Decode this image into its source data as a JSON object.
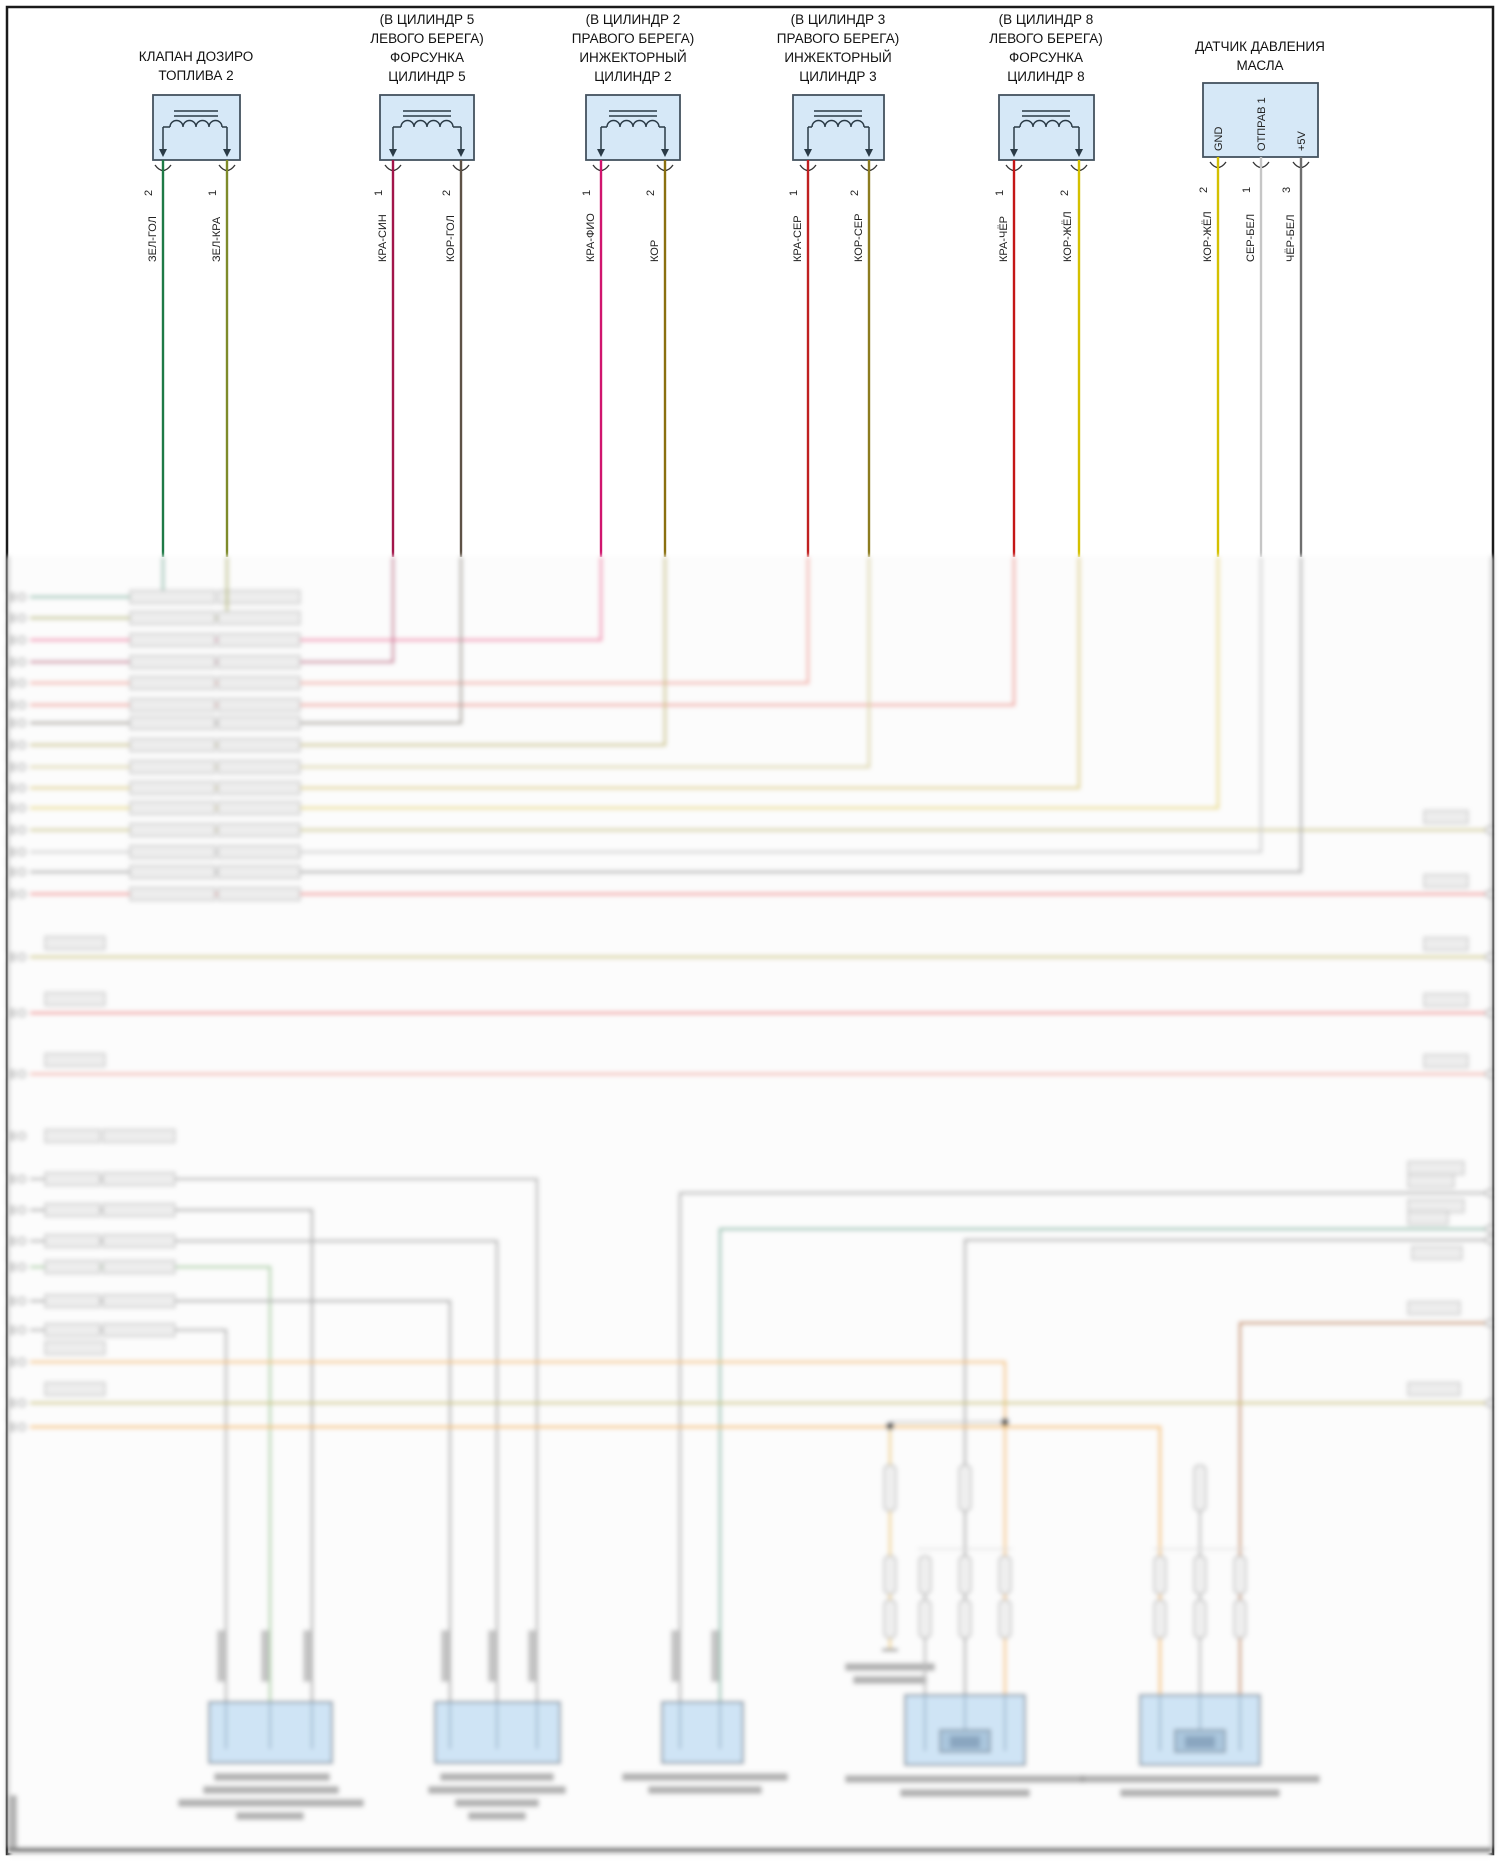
{
  "diagram": {
    "page_kind": "automotive wiring diagram, lower half blurred/illegible",
    "components": [
      {
        "id": "fuel-metering-valve-2",
        "title_lines": [
          "КЛАПАН ДОЗИРО",
          "ТОПЛИВА 2"
        ],
        "symbol": "solenoid-coil",
        "pins": [
          {
            "number": "2",
            "wire_label": "ЗЕЛ-ГОЛ",
            "wire_color": "#1e7a46"
          },
          {
            "number": "1",
            "wire_label": "ЗЕЛ-КРА",
            "wire_color": "#7e8b2b"
          }
        ]
      },
      {
        "id": "injector-cylinder-5",
        "title_lines": [
          "(В ЦИЛИНДР 5",
          "ЛЕВОГО БЕРЕГА)",
          "ФОРСУНКА",
          "ЦИЛИНДР 5"
        ],
        "symbol": "solenoid-coil",
        "pins": [
          {
            "number": "1",
            "wire_label": "КРА-СИН",
            "wire_color": "#a2154a"
          },
          {
            "number": "2",
            "wire_label": "КОР-ГОЛ",
            "wire_color": "#5e5246"
          }
        ]
      },
      {
        "id": "injector-cylinder-2",
        "title_lines": [
          "(В ЦИЛИНДР 2",
          "ПРАВОГО БЕРЕГА)",
          "ИНЖЕКТОРНЫЙ",
          "ЦИЛИНДР 2"
        ],
        "symbol": "solenoid-coil",
        "pins": [
          {
            "number": "1",
            "wire_label": "КРА-ФИО",
            "wire_color": "#d0156e"
          },
          {
            "number": "2",
            "wire_label": "КОР",
            "wire_color": "#8a7010"
          }
        ]
      },
      {
        "id": "injector-cylinder-3",
        "title_lines": [
          "(В ЦИЛИНДР 3",
          "ПРАВОГО БЕРЕГА)",
          "ИНЖЕКТОРНЫЙ",
          "ЦИЛИНДР 3"
        ],
        "symbol": "solenoid-coil",
        "pins": [
          {
            "number": "1",
            "wire_label": "КРА-СЕР",
            "wire_color": "#c02020"
          },
          {
            "number": "2",
            "wire_label": "КОР-СЕР",
            "wire_color": "#8c7c20"
          }
        ]
      },
      {
        "id": "injector-cylinder-8",
        "title_lines": [
          "(В ЦИЛИНДР 8",
          "ЛЕВОГО БЕРЕГА)",
          "ФОРСУНКА",
          "ЦИЛИНДР 8"
        ],
        "symbol": "solenoid-coil",
        "pins": [
          {
            "number": "1",
            "wire_label": "КРА-ЧЁР",
            "wire_color": "#c41616"
          },
          {
            "number": "2",
            "wire_label": "КОР-ЖЁЛ",
            "wire_color": "#d4c000"
          }
        ]
      },
      {
        "id": "oil-pressure-sensor",
        "title_lines": [
          "ДАТЧИК ДАВЛЕНИЯ",
          "МАСЛА"
        ],
        "symbol": "plain-box",
        "internal_pin_labels": [
          "GND",
          "ОТПРАВ 1",
          "+5V"
        ],
        "pins": [
          {
            "number": "2",
            "wire_label": "КОР-ЖЁЛ",
            "wire_color": "#d4c000"
          },
          {
            "number": "1",
            "wire_label": "СЕР-БЕЛ",
            "wire_color": "#c6c6c6"
          },
          {
            "number": "3",
            "wire_label": "ЧЁР-БЕЛ",
            "wire_color": "#6f6f6f"
          }
        ]
      }
    ],
    "colors": {
      "component_fill": "#d6e8f7",
      "component_stroke": "#44525e",
      "page_border": "#1a1a1a"
    }
  }
}
